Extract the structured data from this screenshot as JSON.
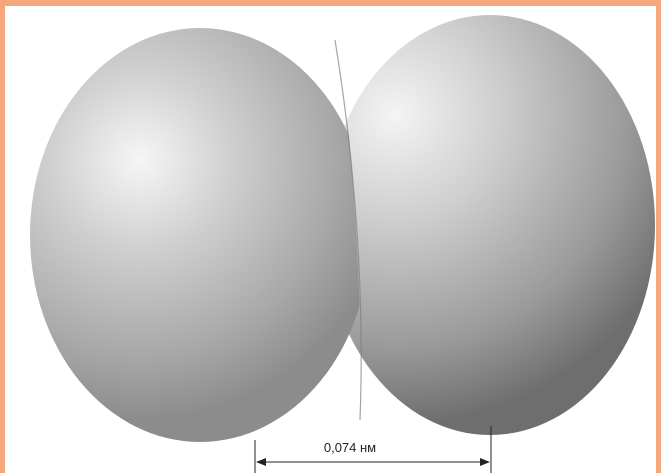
{
  "diagram": {
    "bond_length_label": "0,074 нм",
    "colors": {
      "frame": "#f5a77c",
      "sphere_highlight": "#f4f4f4",
      "sphere_mid": "#b9b9b9",
      "sphere_shadow": "#7a7a7a",
      "dimension_line": "#222222"
    }
  }
}
